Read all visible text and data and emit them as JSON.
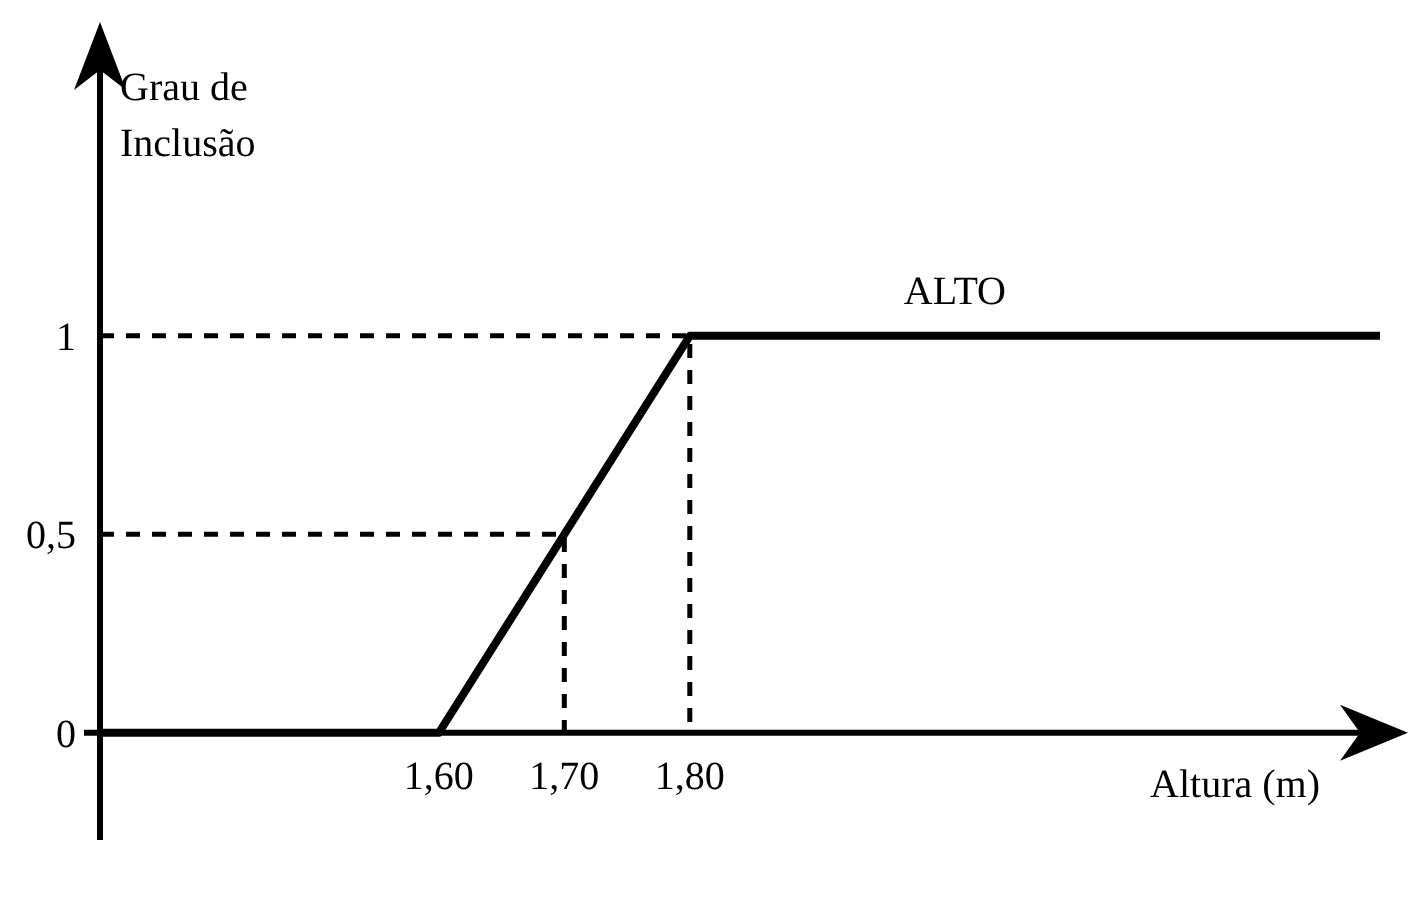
{
  "chart_data": {
    "type": "line",
    "xlabel": "Altura (m)",
    "ylabel": "Grau de Inclusão",
    "xlim": [
      1.33,
      2.35
    ],
    "ylim": [
      -0.27,
      1.72
    ],
    "xticks": [
      {
        "value": 1.6,
        "label": "1,60"
      },
      {
        "value": 1.7,
        "label": "1,70"
      },
      {
        "value": 1.8,
        "label": "1,80"
      }
    ],
    "yticks": [
      {
        "value": 0,
        "label": "0"
      },
      {
        "value": 0.5,
        "label": "0,5"
      },
      {
        "value": 1,
        "label": "1"
      }
    ],
    "grid": false,
    "legend": false,
    "series": [
      {
        "name": "ALTO",
        "color": "#000000",
        "x": [
          1.33,
          1.6,
          1.8,
          2.35
        ],
        "values": [
          0,
          0,
          1,
          1
        ],
        "line_style": "solid"
      },
      {
        "color": "#000000",
        "x": [
          1.33,
          1.8,
          1.8
        ],
        "values": [
          1,
          1,
          0
        ],
        "line_style": "dashed"
      },
      {
        "color": "#000000",
        "x": [
          1.33,
          1.7,
          1.7
        ],
        "values": [
          0.5,
          0.5,
          0
        ],
        "line_style": "dashed"
      }
    ]
  }
}
